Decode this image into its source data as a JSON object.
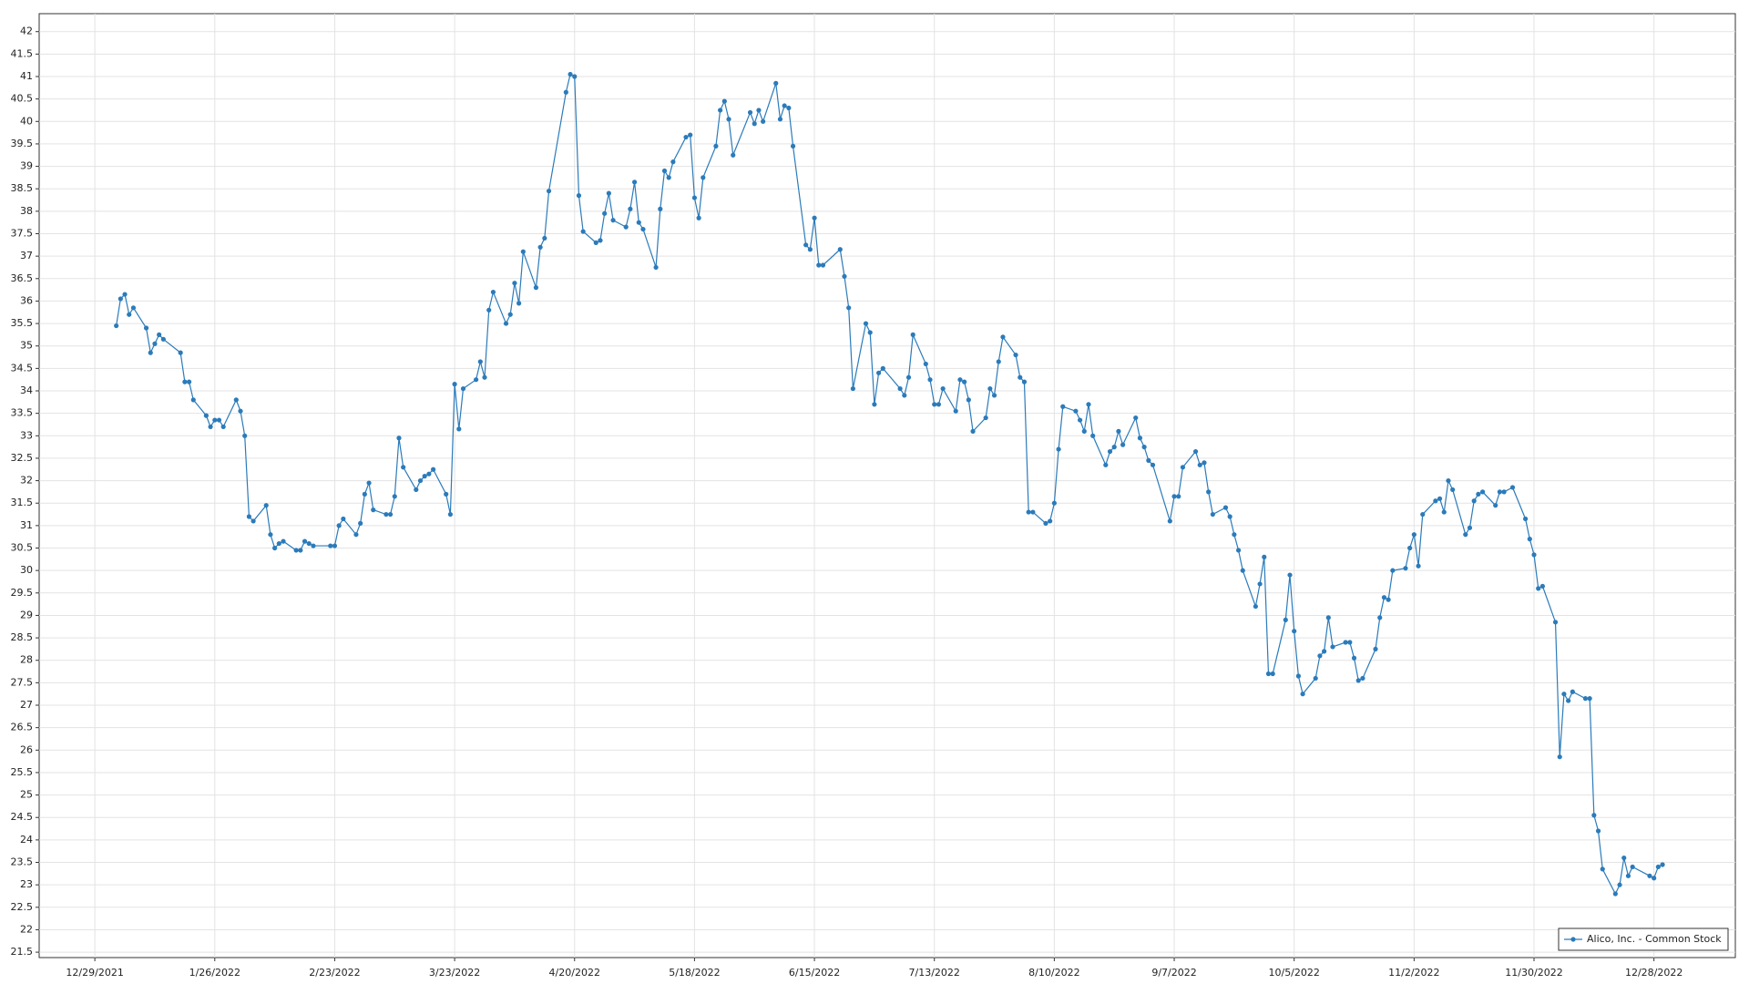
{
  "chart_data": {
    "type": "line",
    "grid": true,
    "legend": "lower right",
    "xlim": [
      "12/16/2021",
      "1/16/2023"
    ],
    "xticks": [
      "12/29/2021",
      "1/26/2022",
      "2/23/2022",
      "3/23/2022",
      "4/20/2022",
      "5/18/2022",
      "6/15/2022",
      "7/13/2022",
      "8/10/2022",
      "9/7/2022",
      "10/5/2022",
      "11/2/2022",
      "11/30/2022",
      "12/28/2022"
    ],
    "ylim": [
      21.38,
      42.4
    ],
    "yticks": [
      21.5,
      22,
      22.5,
      23,
      23.5,
      24,
      24.5,
      25,
      25.5,
      26,
      26.5,
      27,
      27.5,
      28,
      28.5,
      29,
      29.5,
      30,
      30.5,
      31,
      31.5,
      32,
      32.5,
      33,
      33.5,
      34,
      34.5,
      35,
      35.5,
      36,
      36.5,
      37,
      37.5,
      38,
      38.5,
      39,
      39.5,
      40,
      40.5,
      41,
      41.5,
      42
    ],
    "x": [
      "1/3/2022",
      "1/4/2022",
      "1/5/2022",
      "1/6/2022",
      "1/7/2022",
      "1/10/2022",
      "1/11/2022",
      "1/12/2022",
      "1/13/2022",
      "1/14/2022",
      "1/18/2022",
      "1/19/2022",
      "1/20/2022",
      "1/21/2022",
      "1/24/2022",
      "1/25/2022",
      "1/26/2022",
      "1/27/2022",
      "1/28/2022",
      "1/31/2022",
      "2/1/2022",
      "2/2/2022",
      "2/3/2022",
      "2/4/2022",
      "2/7/2022",
      "2/8/2022",
      "2/9/2022",
      "2/10/2022",
      "2/11/2022",
      "2/14/2022",
      "2/15/2022",
      "2/16/2022",
      "2/17/2022",
      "2/18/2022",
      "2/22/2022",
      "2/23/2022",
      "2/24/2022",
      "2/25/2022",
      "2/28/2022",
      "3/1/2022",
      "3/2/2022",
      "3/3/2022",
      "3/4/2022",
      "3/7/2022",
      "3/8/2022",
      "3/9/2022",
      "3/10/2022",
      "3/11/2022",
      "3/14/2022",
      "3/15/2022",
      "3/16/2022",
      "3/17/2022",
      "3/18/2022",
      "3/21/2022",
      "3/22/2022",
      "3/23/2022",
      "3/24/2022",
      "3/25/2022",
      "3/28/2022",
      "3/29/2022",
      "3/30/2022",
      "3/31/2022",
      "4/1/2022",
      "4/4/2022",
      "4/5/2022",
      "4/6/2022",
      "4/7/2022",
      "4/8/2022",
      "4/11/2022",
      "4/12/2022",
      "4/13/2022",
      "4/14/2022",
      "4/18/2022",
      "4/19/2022",
      "4/20/2022",
      "4/21/2022",
      "4/22/2022",
      "4/25/2022",
      "4/26/2022",
      "4/27/2022",
      "4/28/2022",
      "4/29/2022",
      "5/2/2022",
      "5/3/2022",
      "5/4/2022",
      "5/5/2022",
      "5/6/2022",
      "5/9/2022",
      "5/10/2022",
      "5/11/2022",
      "5/12/2022",
      "5/13/2022",
      "5/16/2022",
      "5/17/2022",
      "5/18/2022",
      "5/19/2022",
      "5/20/2022",
      "5/23/2022",
      "5/24/2022",
      "5/25/2022",
      "5/26/2022",
      "5/27/2022",
      "5/31/2022",
      "6/1/2022",
      "6/2/2022",
      "6/3/2022",
      "6/6/2022",
      "6/7/2022",
      "6/8/2022",
      "6/9/2022",
      "6/10/2022",
      "6/13/2022",
      "6/14/2022",
      "6/15/2022",
      "6/16/2022",
      "6/17/2022",
      "6/21/2022",
      "6/22/2022",
      "6/23/2022",
      "6/24/2022",
      "6/27/2022",
      "6/28/2022",
      "6/29/2022",
      "6/30/2022",
      "7/1/2022",
      "7/5/2022",
      "7/6/2022",
      "7/7/2022",
      "7/8/2022",
      "7/11/2022",
      "7/12/2022",
      "7/13/2022",
      "7/14/2022",
      "7/15/2022",
      "7/18/2022",
      "7/19/2022",
      "7/20/2022",
      "7/21/2022",
      "7/22/2022",
      "7/25/2022",
      "7/26/2022",
      "7/27/2022",
      "7/28/2022",
      "7/29/2022",
      "8/1/2022",
      "8/2/2022",
      "8/3/2022",
      "8/4/2022",
      "8/5/2022",
      "8/8/2022",
      "8/9/2022",
      "8/10/2022",
      "8/11/2022",
      "8/12/2022",
      "8/15/2022",
      "8/16/2022",
      "8/17/2022",
      "8/18/2022",
      "8/19/2022",
      "8/22/2022",
      "8/23/2022",
      "8/24/2022",
      "8/25/2022",
      "8/26/2022",
      "8/29/2022",
      "8/30/2022",
      "8/31/2022",
      "9/1/2022",
      "9/2/2022",
      "9/6/2022",
      "9/7/2022",
      "9/8/2022",
      "9/9/2022",
      "9/12/2022",
      "9/13/2022",
      "9/14/2022",
      "9/15/2022",
      "9/16/2022",
      "9/19/2022",
      "9/20/2022",
      "9/21/2022",
      "9/22/2022",
      "9/23/2022",
      "9/26/2022",
      "9/27/2022",
      "9/28/2022",
      "9/29/2022",
      "9/30/2022",
      "10/3/2022",
      "10/4/2022",
      "10/5/2022",
      "10/6/2022",
      "10/7/2022",
      "10/10/2022",
      "10/11/2022",
      "10/12/2022",
      "10/13/2022",
      "10/14/2022",
      "10/17/2022",
      "10/18/2022",
      "10/19/2022",
      "10/20/2022",
      "10/21/2022",
      "10/24/2022",
      "10/25/2022",
      "10/26/2022",
      "10/27/2022",
      "10/28/2022",
      "10/31/2022",
      "11/1/2022",
      "11/2/2022",
      "11/3/2022",
      "11/4/2022",
      "11/7/2022",
      "11/8/2022",
      "11/9/2022",
      "11/10/2022",
      "11/11/2022",
      "11/14/2022",
      "11/15/2022",
      "11/16/2022",
      "11/17/2022",
      "11/18/2022",
      "11/21/2022",
      "11/22/2022",
      "11/23/2022",
      "11/25/2022",
      "11/28/2022",
      "11/29/2022",
      "11/30/2022",
      "12/1/2022",
      "12/2/2022",
      "12/5/2022",
      "12/6/2022",
      "12/7/2022",
      "12/8/2022",
      "12/9/2022",
      "12/12/2022",
      "12/13/2022",
      "12/14/2022",
      "12/15/2022",
      "12/16/2022",
      "12/19/2022",
      "12/20/2022",
      "12/21/2022",
      "12/22/2022",
      "12/23/2022",
      "12/27/2022",
      "12/28/2022",
      "12/29/2022",
      "12/30/2022"
    ],
    "series": [
      {
        "name": "Alico, Inc. - Common Stock",
        "color": "#2b7bba",
        "values": [
          35.45,
          36.05,
          36.15,
          35.7,
          35.85,
          35.4,
          34.85,
          35.05,
          35.25,
          35.15,
          34.85,
          34.2,
          34.2,
          33.8,
          33.45,
          33.2,
          33.35,
          33.35,
          33.2,
          33.8,
          33.55,
          33.0,
          31.2,
          31.1,
          31.45,
          30.8,
          30.5,
          30.6,
          30.65,
          30.45,
          30.45,
          30.65,
          30.6,
          30.55,
          30.55,
          30.55,
          31.0,
          31.15,
          30.8,
          31.05,
          31.7,
          31.95,
          31.35,
          31.25,
          31.25,
          31.65,
          32.95,
          32.3,
          31.8,
          32.0,
          32.1,
          32.15,
          32.25,
          31.7,
          31.25,
          34.15,
          33.15,
          34.05,
          34.25,
          34.65,
          34.3,
          35.8,
          36.2,
          35.5,
          35.7,
          36.4,
          35.95,
          37.1,
          36.3,
          37.2,
          37.4,
          38.45,
          40.65,
          41.05,
          41.0,
          38.35,
          37.55,
          37.3,
          37.35,
          37.95,
          38.4,
          37.8,
          37.65,
          38.05,
          38.65,
          37.75,
          37.6,
          36.75,
          38.05,
          38.9,
          38.75,
          39.1,
          39.65,
          39.7,
          38.3,
          37.85,
          38.75,
          39.45,
          40.25,
          40.45,
          40.05,
          39.25,
          40.2,
          39.95,
          40.25,
          40.0,
          40.85,
          40.05,
          40.35,
          40.3,
          39.45,
          37.25,
          37.15,
          37.85,
          36.8,
          36.8,
          37.15,
          36.55,
          35.85,
          34.05,
          35.5,
          35.3,
          33.7,
          34.4,
          34.5,
          34.05,
          33.9,
          34.3,
          35.25,
          34.6,
          34.25,
          33.7,
          33.7,
          34.05,
          33.55,
          34.25,
          34.2,
          33.8,
          33.1,
          33.4,
          34.05,
          33.9,
          34.65,
          35.2,
          34.8,
          34.3,
          34.2,
          31.3,
          31.3,
          31.05,
          31.1,
          31.5,
          32.7,
          33.65,
          33.55,
          33.35,
          33.1,
          33.7,
          33.0,
          32.35,
          32.65,
          32.75,
          33.1,
          32.8,
          33.4,
          32.95,
          32.75,
          32.45,
          32.35,
          31.1,
          31.65,
          31.65,
          32.3,
          32.65,
          32.35,
          32.4,
          31.75,
          31.25,
          31.4,
          31.2,
          30.8,
          30.45,
          30.0,
          29.2,
          29.7,
          30.3,
          27.7,
          27.7,
          28.9,
          29.9,
          28.65,
          27.65,
          27.25,
          27.6,
          28.1,
          28.2,
          28.95,
          28.3,
          28.4,
          28.4,
          28.05,
          27.55,
          27.6,
          28.25,
          28.95,
          29.4,
          29.35,
          30.0,
          30.05,
          30.5,
          30.8,
          30.1,
          31.25,
          31.55,
          31.6,
          31.3,
          32.0,
          31.8,
          30.8,
          30.95,
          31.55,
          31.7,
          31.75,
          31.45,
          31.75,
          31.75,
          31.85,
          31.15,
          30.7,
          30.35,
          29.6,
          29.65,
          28.85,
          25.85,
          27.25,
          27.1,
          27.3,
          27.15,
          27.15,
          24.55,
          24.2,
          23.35,
          22.8,
          23.0,
          23.6,
          23.2,
          23.4,
          23.2,
          23.15,
          23.4,
          23.45
        ]
      }
    ]
  }
}
